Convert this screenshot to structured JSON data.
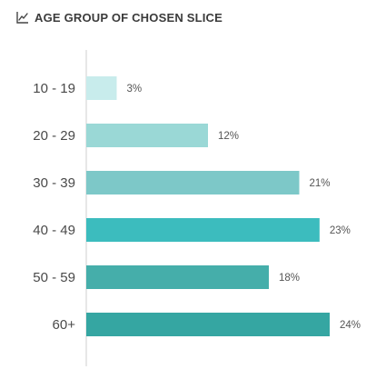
{
  "header": {
    "title": "AGE GROUP OF CHOSEN SLICE",
    "icon": "line-chart-icon"
  },
  "chart_data": {
    "type": "bar",
    "orientation": "horizontal",
    "title": "AGE GROUP OF CHOSEN SLICE",
    "categories": [
      "10 - 19",
      "20 - 29",
      "30 - 39",
      "40 - 49",
      "50 - 59",
      "60+"
    ],
    "values": [
      3,
      12,
      21,
      23,
      18,
      24
    ],
    "value_labels": [
      "3%",
      "12%",
      "21%",
      "23%",
      "18%",
      "24%"
    ],
    "colors": [
      "#c8ecec",
      "#9ad8d6",
      "#7dc8c8",
      "#3cbcbe",
      "#45aeaa",
      "#35a6a2"
    ],
    "xlim": [
      0,
      24
    ],
    "grid": false,
    "legend": "none"
  }
}
